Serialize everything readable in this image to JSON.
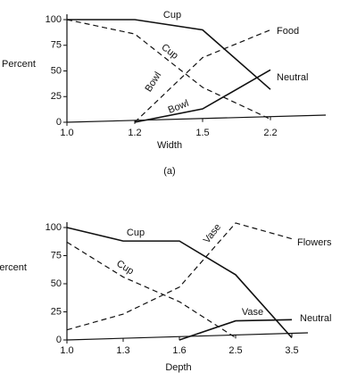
{
  "chart_data": [
    {
      "type": "line",
      "caption": "(a)",
      "x_label": "Width",
      "y_label": "Percent",
      "categories": [
        "1.0",
        "1.2",
        "1.5",
        "2.2"
      ],
      "ylim": [
        0,
        100
      ],
      "yticks": [
        0,
        25,
        50,
        75,
        100
      ],
      "series": [
        {
          "name": "Cup",
          "color": "#111",
          "dash": false,
          "values": [
            100,
            100,
            90,
            32
          ]
        },
        {
          "name": "Cup",
          "color": "#111",
          "dash": true,
          "values": [
            100,
            86,
            34,
            3
          ]
        },
        {
          "name": "Bowl",
          "end_label": "Food",
          "color": "#111",
          "dash": true,
          "values": [
            null,
            0,
            63,
            90
          ]
        },
        {
          "name": "Bowl",
          "end_label": "Neutral",
          "color": "#111",
          "dash": false,
          "values": [
            null,
            0,
            13,
            51
          ]
        }
      ]
    },
    {
      "type": "line",
      "x_label": "Depth",
      "y_label": "Percent",
      "categories": [
        "1.0",
        "1.3",
        "1.6",
        "2.5",
        "3.5"
      ],
      "ylim": [
        0,
        100
      ],
      "yticks": [
        0,
        25,
        50,
        75,
        100
      ],
      "series": [
        {
          "name": "Cup",
          "color": "#111",
          "dash": false,
          "values": [
            100,
            88,
            88,
            58,
            2
          ]
        },
        {
          "name": "Cup",
          "color": "#111",
          "dash": true,
          "values": [
            87,
            56,
            34,
            2,
            null
          ]
        },
        {
          "name": "Vase",
          "end_label": "Flowers",
          "color": "#111",
          "dash": true,
          "values": [
            9,
            23,
            47,
            104,
            90
          ]
        },
        {
          "name": "Vase",
          "end_label": "Neutral",
          "color": "#111",
          "dash": false,
          "values": [
            null,
            null,
            0,
            17,
            18
          ]
        }
      ]
    }
  ]
}
